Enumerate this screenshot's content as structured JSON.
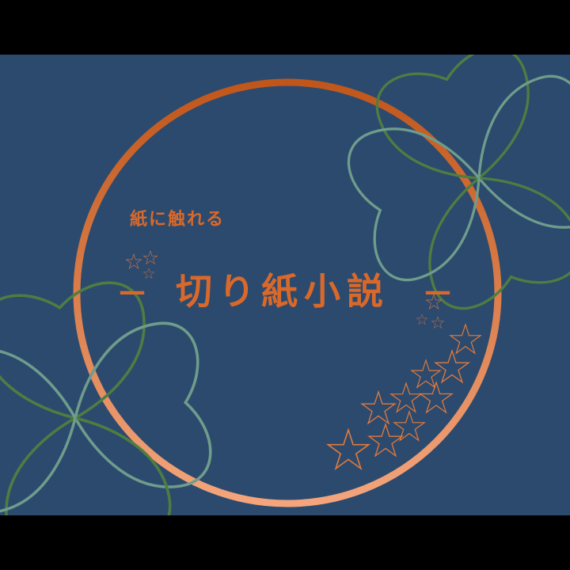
{
  "texts": {
    "subtitle": "紙に触れる",
    "title": "切り紙小説",
    "dash_left": "—",
    "dash_right": "—"
  },
  "colors": {
    "letterbox": "#000000",
    "canvas_bg": "#2c4a6e",
    "ring_top": "#c0561a",
    "ring_bottom": "#f4a57c",
    "text_orange": "#d9692a",
    "star_orange": "#e07a3c",
    "clover_green": "#4e7d42",
    "clover_teal": "#6f9c8b"
  }
}
